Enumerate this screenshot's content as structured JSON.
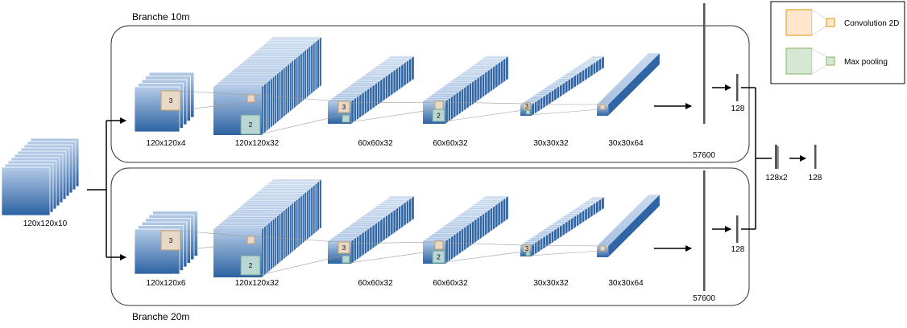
{
  "branches": [
    {
      "title": "Branche 10m",
      "input_label": "120x120x4",
      "conv1_label": "120x120x32",
      "pool1_label": "60x60x32",
      "conv2_label": "60x60x32",
      "pool2_label": "30x30x32",
      "conv3_label": "30x30x64",
      "flatten_label": "57600",
      "dense_label": "128",
      "kernel_labels": [
        "3",
        "2",
        "3",
        "2",
        "3"
      ]
    },
    {
      "title": "Branche 20m",
      "input_label": "120x120x6",
      "conv1_label": "120x120x32",
      "pool1_label": "60x60x32",
      "conv2_label": "60x60x32",
      "pool2_label": "30x30x32",
      "conv3_label": "30x30x64",
      "flatten_label": "57600",
      "dense_label": "128",
      "kernel_labels": [
        "3",
        "2",
        "3",
        "2",
        "3"
      ]
    }
  ],
  "main_input_label": "120x120x10",
  "concat_label": "128x2",
  "output_label": "128",
  "legend": {
    "conv_label": "Convolution 2D",
    "pool_label": "Max pooling",
    "conv_color": "#ffe6cc",
    "conv_border": "#d79b00",
    "pool_color": "#d5e8d4",
    "pool_border": "#82b366"
  },
  "colors": {
    "layer_top": "#b0c8e6",
    "layer_bottom": "#2e64a4",
    "depth": "#b7cde8"
  }
}
